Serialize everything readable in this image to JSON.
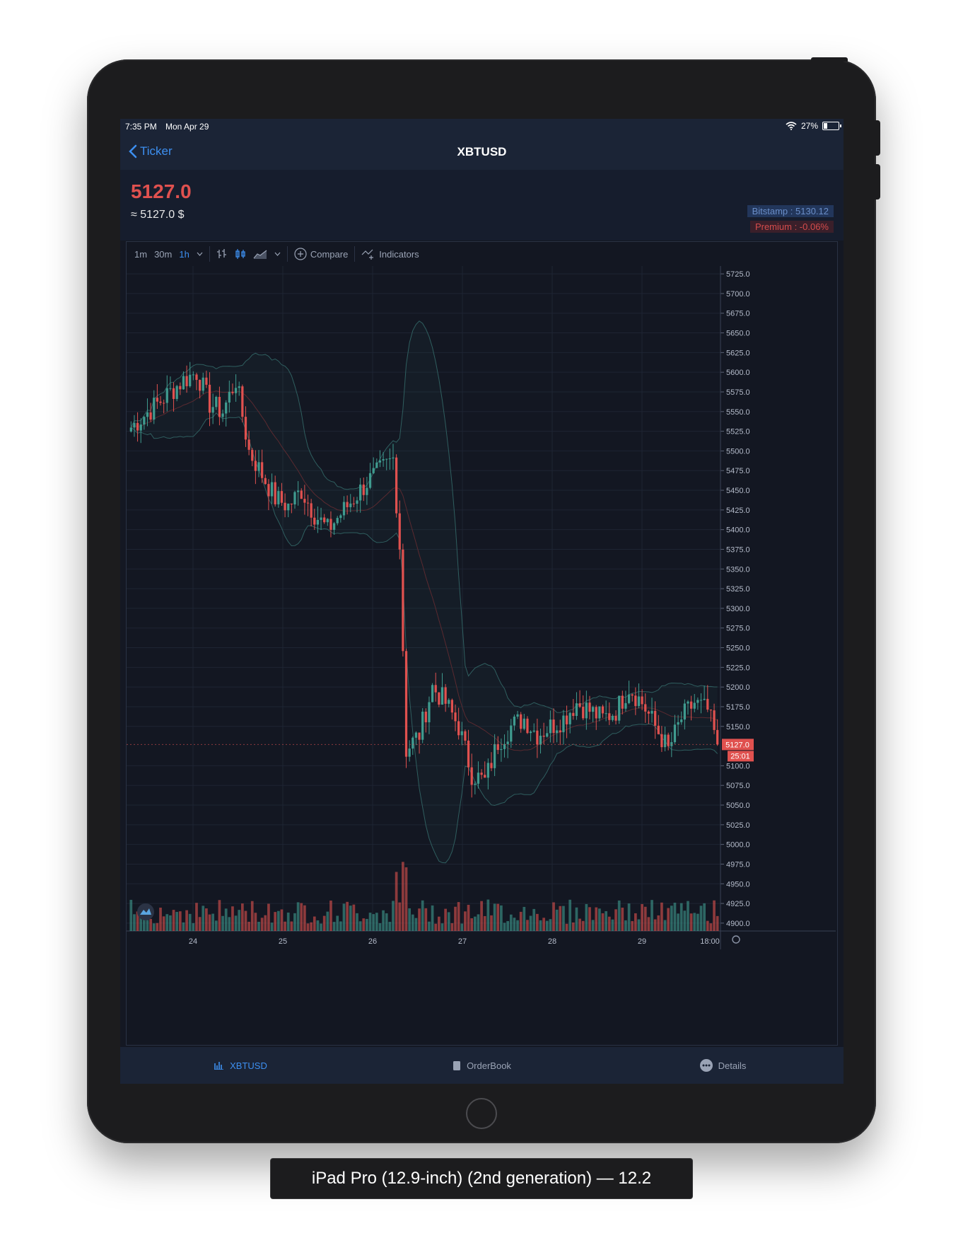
{
  "status_bar": {
    "time": "7:35 PM",
    "date": "Mon Apr 29",
    "battery": "27%"
  },
  "nav": {
    "back_label": "Ticker",
    "title": "XBTUSD"
  },
  "price": {
    "last": "5127.0",
    "approx": "≈ 5127.0 $",
    "bitstamp": "Bitstamp : 5130.12",
    "premium": "Premium : -0.06%"
  },
  "toolbar": {
    "intervals": [
      "1m",
      "30m",
      "1h"
    ],
    "active_interval": "1h",
    "compare_label": "Compare",
    "indicators_label": "Indicators"
  },
  "chart_data": {
    "type": "candlestick",
    "symbol": "XBTUSD",
    "interval": "1h",
    "ylim": [
      4890,
      5735
    ],
    "y_ticks": [
      "5725.0",
      "5700.0",
      "5675.0",
      "5650.0",
      "5625.0",
      "5600.0",
      "5575.0",
      "5550.0",
      "5525.0",
      "5500.0",
      "5475.0",
      "5450.0",
      "5425.0",
      "5400.0",
      "5375.0",
      "5350.0",
      "5325.0",
      "5300.0",
      "5275.0",
      "5250.0",
      "5225.0",
      "5200.0",
      "5175.0",
      "5150.0",
      "5100.0",
      "5075.0",
      "5050.0",
      "5025.0",
      "5000.0",
      "4975.0",
      "4950.0",
      "4925.0",
      "4900.0"
    ],
    "x_ticks": [
      "24",
      "25",
      "26",
      "27",
      "28",
      "29",
      "18:00"
    ],
    "current_price_label": "5127.0",
    "countdown_label": "25:01",
    "up_color": "#3f9b8f",
    "down_color": "#e0514f",
    "grid": true,
    "overlays": [
      "bollinger-bands",
      "moving-average"
    ],
    "close_path": [
      [
        0,
        5530
      ],
      [
        8,
        5560
      ],
      [
        16,
        5590
      ],
      [
        20,
        5600
      ],
      [
        24,
        5560
      ],
      [
        28,
        5550
      ],
      [
        32,
        5590
      ],
      [
        36,
        5500
      ],
      [
        40,
        5470
      ],
      [
        44,
        5440
      ],
      [
        48,
        5430
      ],
      [
        52,
        5450
      ],
      [
        56,
        5420
      ],
      [
        60,
        5400
      ],
      [
        64,
        5420
      ],
      [
        68,
        5440
      ],
      [
        72,
        5460
      ],
      [
        76,
        5475
      ],
      [
        80,
        5490
      ],
      [
        82,
        5380
      ],
      [
        84,
        5120
      ],
      [
        88,
        5140
      ],
      [
        92,
        5200
      ],
      [
        96,
        5180
      ],
      [
        100,
        5150
      ],
      [
        104,
        5090
      ],
      [
        108,
        5080
      ],
      [
        112,
        5130
      ],
      [
        116,
        5150
      ],
      [
        120,
        5160
      ],
      [
        124,
        5140
      ],
      [
        128,
        5150
      ],
      [
        132,
        5160
      ],
      [
        136,
        5180
      ],
      [
        140,
        5170
      ],
      [
        144,
        5160
      ],
      [
        148,
        5170
      ],
      [
        152,
        5200
      ],
      [
        156,
        5180
      ],
      [
        160,
        5150
      ],
      [
        164,
        5120
      ],
      [
        168,
        5160
      ],
      [
        172,
        5180
      ],
      [
        176,
        5170
      ],
      [
        179,
        5127
      ]
    ]
  },
  "tabs": [
    {
      "label": "XBTUSD",
      "active": true
    },
    {
      "label": "OrderBook",
      "active": false
    },
    {
      "label": "Details",
      "active": false
    }
  ],
  "caption": "iPad Pro (12.9-inch) (2nd generation) — 12.2"
}
